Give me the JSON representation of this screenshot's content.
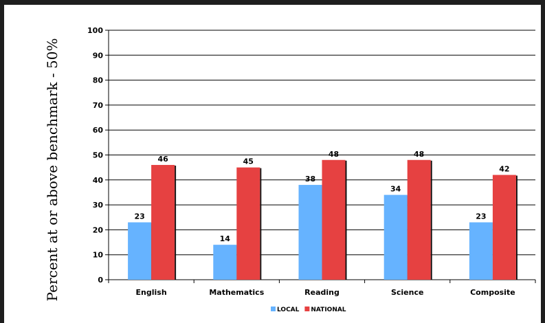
{
  "chart_data": {
    "type": "bar",
    "title": "",
    "xlabel": "",
    "ylabel": "Percent at or above benchmark - 50%",
    "ylim": [
      0,
      100
    ],
    "yticks": [
      0,
      10,
      20,
      30,
      40,
      50,
      60,
      70,
      80,
      90,
      100
    ],
    "categories": [
      "English",
      "Mathematics",
      "Reading",
      "Science",
      "Composite"
    ],
    "series": [
      {
        "name": "LOCAL",
        "color": "#66b3ff",
        "values": [
          23,
          14,
          38,
          34,
          23
        ]
      },
      {
        "name": "NATIONAL",
        "color": "#e64141",
        "values": [
          46,
          45,
          48,
          48,
          42
        ]
      }
    ],
    "grid": true,
    "legend": "bottom-center"
  }
}
